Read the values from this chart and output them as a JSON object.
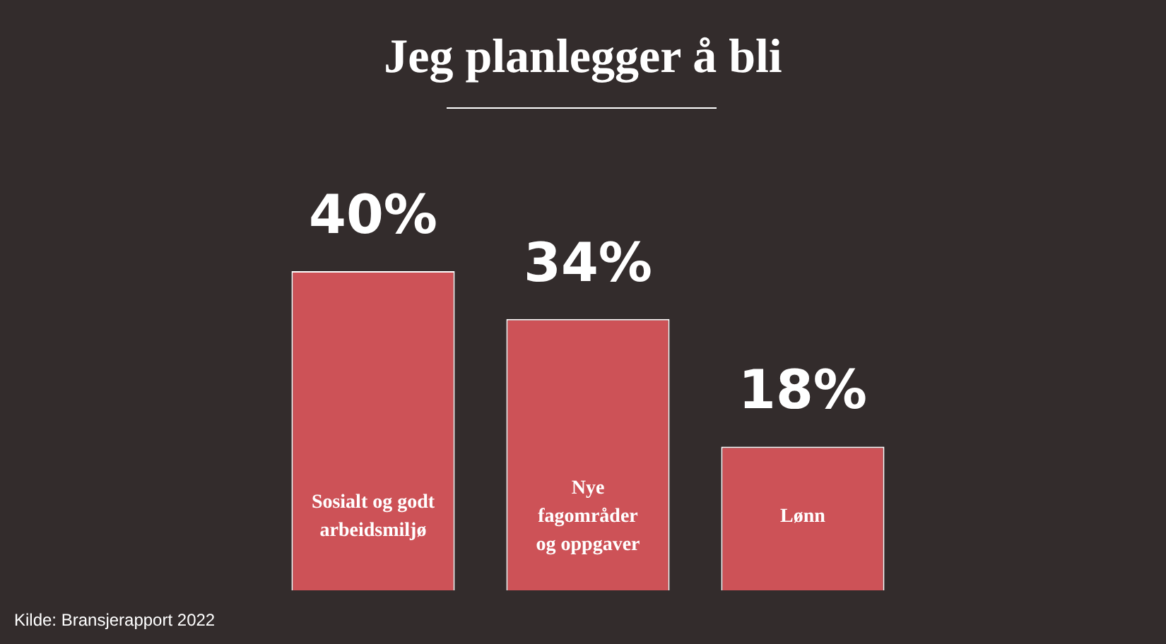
{
  "chart_data": {
    "type": "bar",
    "title": "Jeg planlegger å bli",
    "categories": [
      "Sosialt og godt arbeidsmiljø",
      "Nye fagområder og oppgaver",
      "Lønn"
    ],
    "values": [
      40,
      34,
      18
    ],
    "value_labels": [
      "40%",
      "34%",
      "18%"
    ],
    "color": "#cd5257",
    "annotations": [
      "Kilde: Bransjerapport 2022"
    ]
  }
}
